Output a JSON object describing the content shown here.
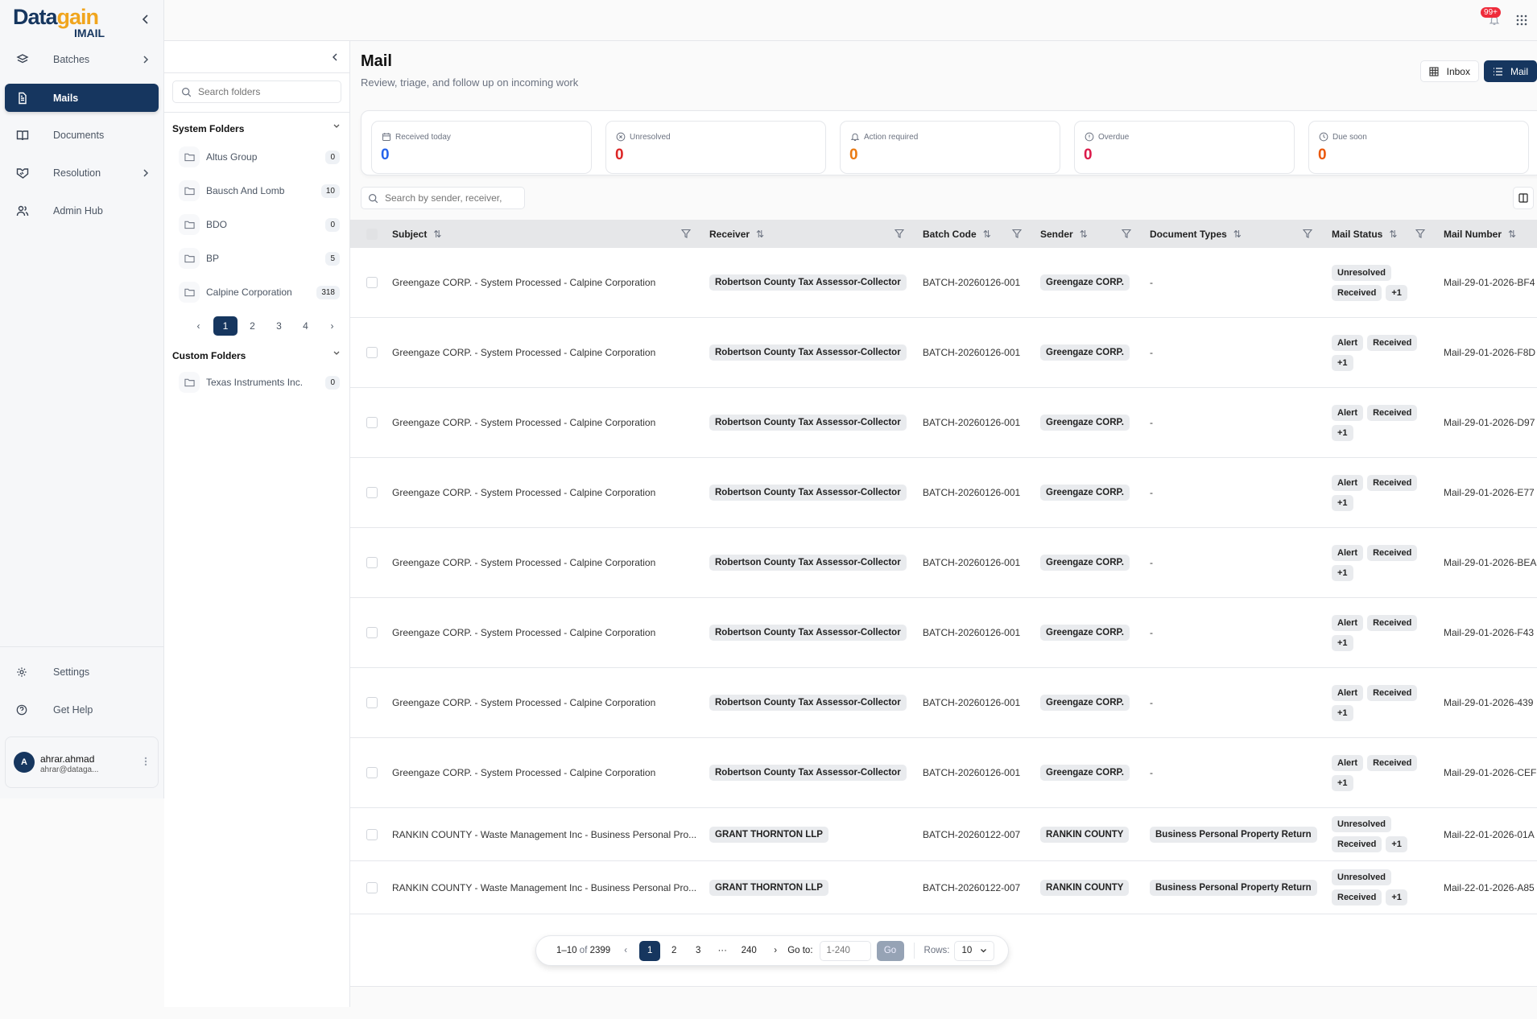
{
  "brand": {
    "name_dark": "Data",
    "name_accent": "gain",
    "product": "IMAIL",
    "accent": "#f0a51e",
    "primary": "#16365f"
  },
  "sidebar": {
    "items": [
      {
        "label": "Batches",
        "icon": "layers-icon",
        "has_chevron": true
      },
      {
        "label": "Mails",
        "icon": "file-text-icon",
        "active": true
      },
      {
        "label": "Documents",
        "icon": "book-open-icon"
      },
      {
        "label": "Resolution",
        "icon": "handshake-icon",
        "has_chevron": true
      },
      {
        "label": "Admin Hub",
        "icon": "users-icon"
      }
    ],
    "bottom": [
      {
        "label": "Settings",
        "icon": "gear-icon"
      },
      {
        "label": "Get Help",
        "icon": "help-circle-icon"
      }
    ],
    "user": {
      "initial": "A",
      "name": "ahrar.ahmad",
      "email": "ahrar@dataga..."
    }
  },
  "topbar": {
    "notifications": "99+"
  },
  "folders": {
    "search_placeholder": "Search folders",
    "system_title": "System Folders",
    "system": [
      {
        "name": "Altus Group",
        "count": "0"
      },
      {
        "name": "Bausch And Lomb",
        "count": "10"
      },
      {
        "name": "BDO",
        "count": "0"
      },
      {
        "name": "BP",
        "count": "5"
      },
      {
        "name": "Calpine Corporation",
        "count": "318"
      }
    ],
    "pages": [
      "1",
      "2",
      "3",
      "4"
    ],
    "current_page": "1",
    "custom_title": "Custom Folders",
    "custom": [
      {
        "name": "Texas Instruments Inc.",
        "count": "0"
      }
    ]
  },
  "main": {
    "title": "Mail",
    "subtitle": "Review, triage, and follow up on incoming work",
    "views": [
      {
        "label": "Inbox",
        "icon": "grid-icon"
      },
      {
        "label": "Mail",
        "icon": "list-icon",
        "active": true
      }
    ],
    "stats": [
      {
        "label": "Received today",
        "value": "0",
        "color": "#2563eb",
        "icon": "calendar-icon"
      },
      {
        "label": "Unresolved",
        "value": "0",
        "color": "#dc2626",
        "icon": "x-circle-icon"
      },
      {
        "label": "Action required",
        "value": "0",
        "color": "#ea7a12",
        "icon": "bell-icon"
      },
      {
        "label": "Overdue",
        "value": "0",
        "color": "#db1a4a",
        "icon": "alert-circle-icon"
      },
      {
        "label": "Due soon",
        "value": "0",
        "color": "#ea580c",
        "icon": "clock-icon"
      }
    ],
    "search_placeholder": "Search by sender, receiver,"
  },
  "table": {
    "columns": [
      "Subject",
      "Receiver",
      "Batch Code",
      "Sender",
      "Document Types",
      "Mail Status",
      "Mail Number"
    ],
    "rows": [
      {
        "subject": "Greengaze CORP. - System Processed - Calpine Corporation",
        "receiver": "Robertson County Tax Assessor-Collector",
        "batch": "BATCH-20260126-001",
        "sender": "Greengaze CORP.",
        "doctypes": "-",
        "status": [
          "Unresolved",
          "Received",
          "+1"
        ],
        "number": "Mail-29-01-2026-BF4"
      },
      {
        "subject": "Greengaze CORP. - System Processed - Calpine Corporation",
        "receiver": "Robertson County Tax Assessor-Collector",
        "batch": "BATCH-20260126-001",
        "sender": "Greengaze CORP.",
        "doctypes": "-",
        "status": [
          "Alert",
          "Received",
          "+1"
        ],
        "number": "Mail-29-01-2026-F8D"
      },
      {
        "subject": "Greengaze CORP. - System Processed - Calpine Corporation",
        "receiver": "Robertson County Tax Assessor-Collector",
        "batch": "BATCH-20260126-001",
        "sender": "Greengaze CORP.",
        "doctypes": "-",
        "status": [
          "Alert",
          "Received",
          "+1"
        ],
        "number": "Mail-29-01-2026-D97"
      },
      {
        "subject": "Greengaze CORP. - System Processed - Calpine Corporation",
        "receiver": "Robertson County Tax Assessor-Collector",
        "batch": "BATCH-20260126-001",
        "sender": "Greengaze CORP.",
        "doctypes": "-",
        "status": [
          "Alert",
          "Received",
          "+1"
        ],
        "number": "Mail-29-01-2026-E77"
      },
      {
        "subject": "Greengaze CORP. - System Processed - Calpine Corporation",
        "receiver": "Robertson County Tax Assessor-Collector",
        "batch": "BATCH-20260126-001",
        "sender": "Greengaze CORP.",
        "doctypes": "-",
        "status": [
          "Alert",
          "Received",
          "+1"
        ],
        "number": "Mail-29-01-2026-BEA"
      },
      {
        "subject": "Greengaze CORP. - System Processed - Calpine Corporation",
        "receiver": "Robertson County Tax Assessor-Collector",
        "batch": "BATCH-20260126-001",
        "sender": "Greengaze CORP.",
        "doctypes": "-",
        "status": [
          "Alert",
          "Received",
          "+1"
        ],
        "number": "Mail-29-01-2026-F43"
      },
      {
        "subject": "Greengaze CORP. - System Processed - Calpine Corporation",
        "receiver": "Robertson County Tax Assessor-Collector",
        "batch": "BATCH-20260126-001",
        "sender": "Greengaze CORP.",
        "doctypes": "-",
        "status": [
          "Alert",
          "Received",
          "+1"
        ],
        "number": "Mail-29-01-2026-439"
      },
      {
        "subject": "Greengaze CORP. - System Processed - Calpine Corporation",
        "receiver": "Robertson County Tax Assessor-Collector",
        "batch": "BATCH-20260126-001",
        "sender": "Greengaze CORP.",
        "doctypes": "-",
        "status": [
          "Alert",
          "Received",
          "+1"
        ],
        "number": "Mail-29-01-2026-CEF"
      },
      {
        "subject": "RANKIN COUNTY - Waste Management Inc - Business Personal Pro...",
        "receiver": "GRANT THORNTON LLP",
        "batch": "BATCH-20260122-007",
        "sender": "RANKIN COUNTY",
        "doctypes": "Business Personal Property Return",
        "status": [
          "Unresolved",
          "Received",
          "+1"
        ],
        "number": "Mail-22-01-2026-01A"
      },
      {
        "subject": "RANKIN COUNTY - Waste Management Inc - Business Personal Pro...",
        "receiver": "GRANT THORNTON LLP",
        "batch": "BATCH-20260122-007",
        "sender": "RANKIN COUNTY",
        "doctypes": "Business Personal Property Return",
        "status": [
          "Unresolved",
          "Received",
          "+1"
        ],
        "number": "Mail-22-01-2026-A85"
      }
    ]
  },
  "pagination": {
    "range": "1–10",
    "of_label": "of",
    "total": "2399",
    "pages": [
      "1",
      "2",
      "3"
    ],
    "ellipsis": "···",
    "last": "240",
    "current": "1",
    "goto_label": "Go to:",
    "goto_placeholder": "1-240",
    "go_label": "Go",
    "rows_label": "Rows:",
    "rows_value": "10"
  }
}
